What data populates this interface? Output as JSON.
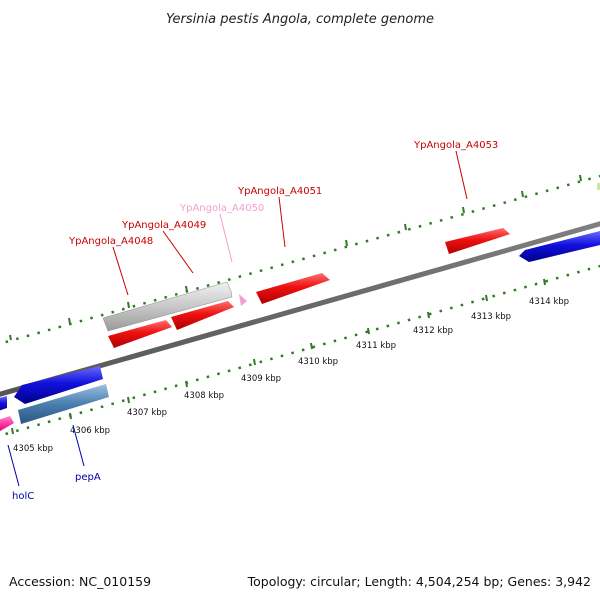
{
  "title": "Yersinia pestis Angola, complete genome",
  "footer": {
    "accession": "Accession: NC_010159",
    "summary": "Topology: circular; Length: 4,504,254 bp; Genes: 3,942"
  },
  "colors": {
    "backbone": "#7a7a7a",
    "tick": "#2e7d22",
    "forward_gene": "#ee1111",
    "reverse_gene": "#1111dd",
    "pseudo_gene": "#c8c8c8",
    "pink_gene": "#f0a0d0",
    "steel_gene": "#4a7fb0",
    "magenta_gene": "#ff2a9c",
    "label_red": "#cc0000",
    "label_pink": "#f0a0d0",
    "label_blue": "#0000aa"
  },
  "ticks": [
    {
      "label": "4305 kbp"
    },
    {
      "label": "4306 kbp"
    },
    {
      "label": "4307 kbp"
    },
    {
      "label": "4308 kbp"
    },
    {
      "label": "4309 kbp"
    },
    {
      "label": "4310 kbp"
    },
    {
      "label": "4311 kbp"
    },
    {
      "label": "4312 kbp"
    },
    {
      "label": "4313 kbp"
    },
    {
      "label": "4314 kbp"
    }
  ],
  "gene_labels": [
    {
      "name": "YpAngola_A4048",
      "color": "label_red"
    },
    {
      "name": "YpAngola_A4049",
      "color": "label_red"
    },
    {
      "name": "YpAngola_A4050",
      "color": "label_pink"
    },
    {
      "name": "YpAngola_A4051",
      "color": "label_red"
    },
    {
      "name": "YpAngola_A4053",
      "color": "label_red"
    },
    {
      "name": "pepA",
      "color": "label_blue"
    },
    {
      "name": "holC",
      "color": "label_blue"
    }
  ]
}
